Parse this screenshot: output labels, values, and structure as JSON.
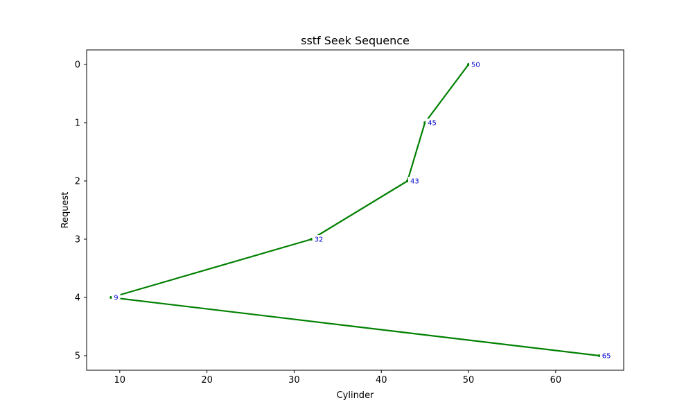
{
  "chart_data": {
    "type": "line",
    "title": "sstf Seek Sequence",
    "xlabel": "Cylinder",
    "ylabel": "Request",
    "xlim": [
      6.2,
      67.8
    ],
    "ylim": [
      5.25,
      -0.25
    ],
    "y_inverted": true,
    "x_ticks": [
      10,
      20,
      30,
      40,
      50,
      60
    ],
    "y_ticks": [
      0,
      1,
      2,
      3,
      4,
      5
    ],
    "grid": false,
    "series": [
      {
        "points": [
          {
            "x": 50,
            "y": 0,
            "label": "50"
          },
          {
            "x": 45,
            "y": 1,
            "label": "45"
          },
          {
            "x": 43,
            "y": 2,
            "label": "43"
          },
          {
            "x": 32,
            "y": 3,
            "label": "32"
          },
          {
            "x": 9,
            "y": 4,
            "label": "9"
          },
          {
            "x": 65,
            "y": 5,
            "label": "65"
          }
        ]
      }
    ],
    "colors": {
      "line": "#008000",
      "label": "#0000cd",
      "label_bg": "#ffffff"
    }
  }
}
